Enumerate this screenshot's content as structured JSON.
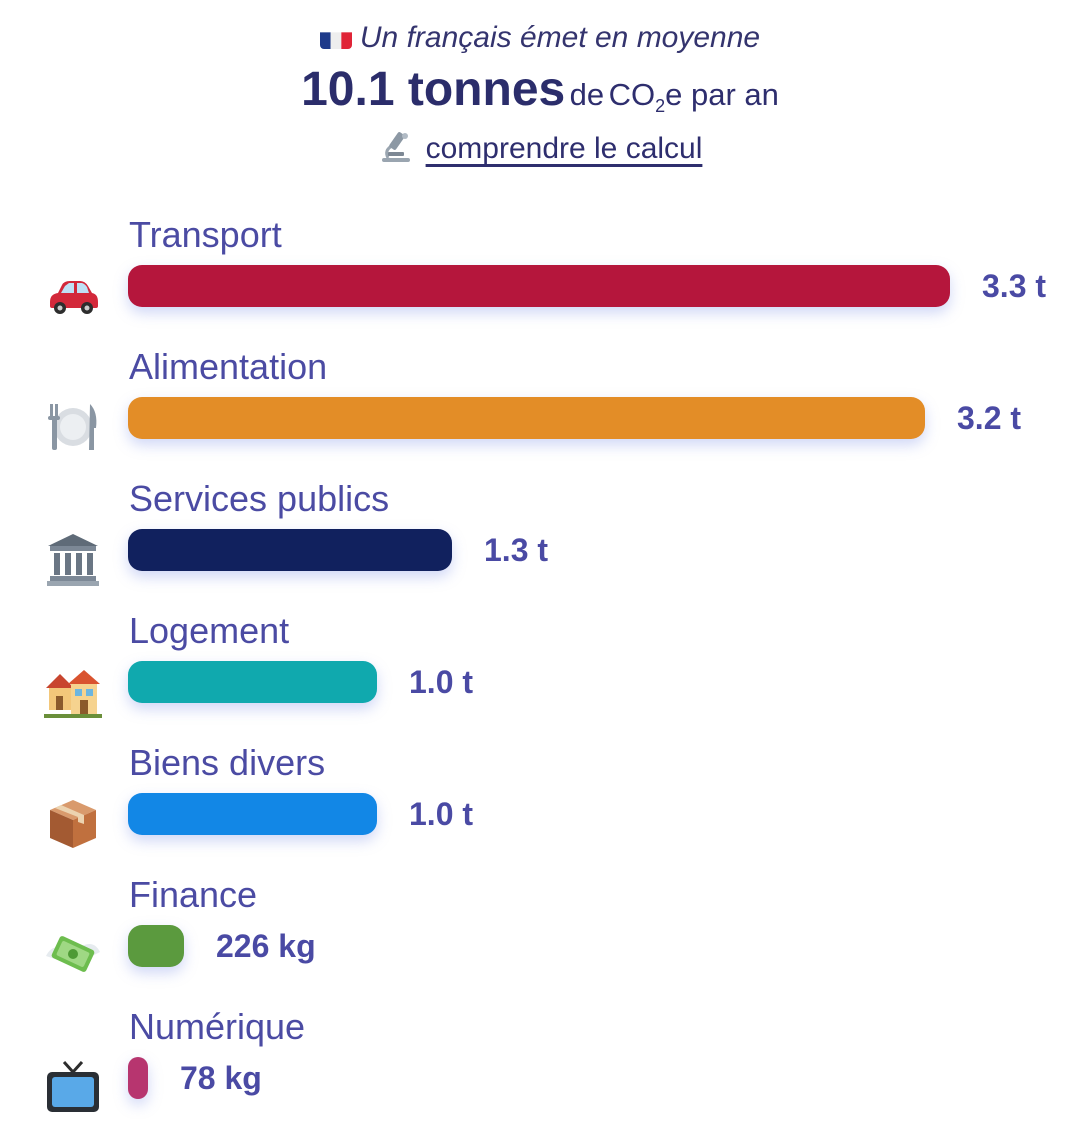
{
  "header": {
    "subtitle": "Un français émet en moyenne",
    "total": "10.1 tonnes",
    "unit_prefix": "de",
    "unit_co2": "CO",
    "unit_sub": "2",
    "unit_suffix": "e par an",
    "link_label": "comprendre le calcul",
    "flag_icon": "france-flag-icon",
    "link_icon": "microscope-icon"
  },
  "chart_data": {
    "type": "bar",
    "orientation": "horizontal",
    "unit": "kg CO2e",
    "categories": [
      "Transport",
      "Alimentation",
      "Services publics",
      "Logement",
      "Biens divers",
      "Finance",
      "Numérique"
    ],
    "values": [
      3300,
      3200,
      1300,
      1000,
      1000,
      226,
      78
    ],
    "value_labels": [
      "3.3 t",
      "3.2 t",
      "1.3 t",
      "1.0 t",
      "1.0 t",
      "226 kg",
      "78 kg"
    ],
    "colors": [
      "#b5163c",
      "#e38d27",
      "#11215e",
      "#10a9ae",
      "#1287e6",
      "#5b9a3e",
      "#b7356f"
    ],
    "icons": [
      "car-icon",
      "fork-knife-plate-icon",
      "classical-building-icon",
      "houses-icon",
      "package-icon",
      "money-wings-icon",
      "television-icon"
    ],
    "grid": false,
    "legend": "none"
  }
}
